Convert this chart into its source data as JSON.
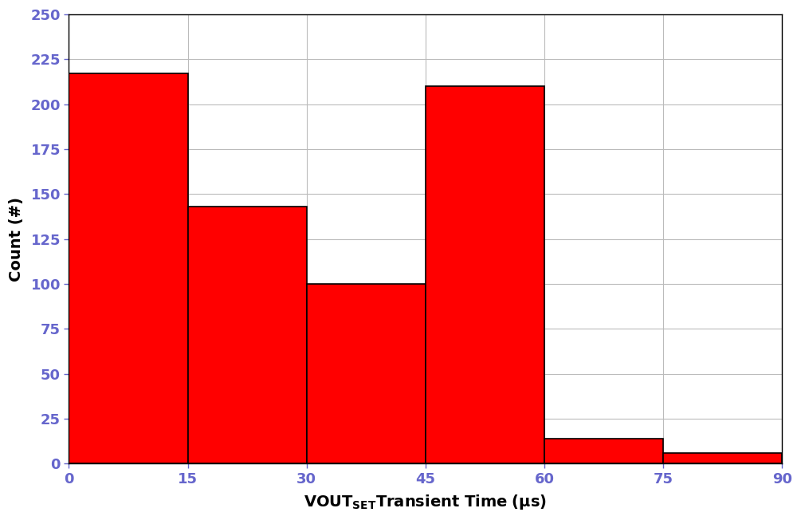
{
  "bin_edges": [
    0,
    15,
    30,
    45,
    60,
    75,
    90
  ],
  "counts": [
    217,
    143,
    100,
    210,
    14,
    6
  ],
  "bar_color": "#FF0000",
  "bar_edgecolor": "#000000",
  "bar_linewidth": 1.2,
  "ylabel": "Count (#)",
  "xlim": [
    0,
    90
  ],
  "ylim": [
    0,
    250
  ],
  "xticks": [
    0,
    15,
    30,
    45,
    60,
    75,
    90
  ],
  "yticks": [
    0,
    25,
    50,
    75,
    100,
    125,
    150,
    175,
    200,
    225,
    250
  ],
  "grid_color": "#BBBBBB",
  "grid_linewidth": 0.8,
  "bg_color": "#FFFFFF",
  "tick_label_color": "#6666CC",
  "axis_label_color": "#000000"
}
